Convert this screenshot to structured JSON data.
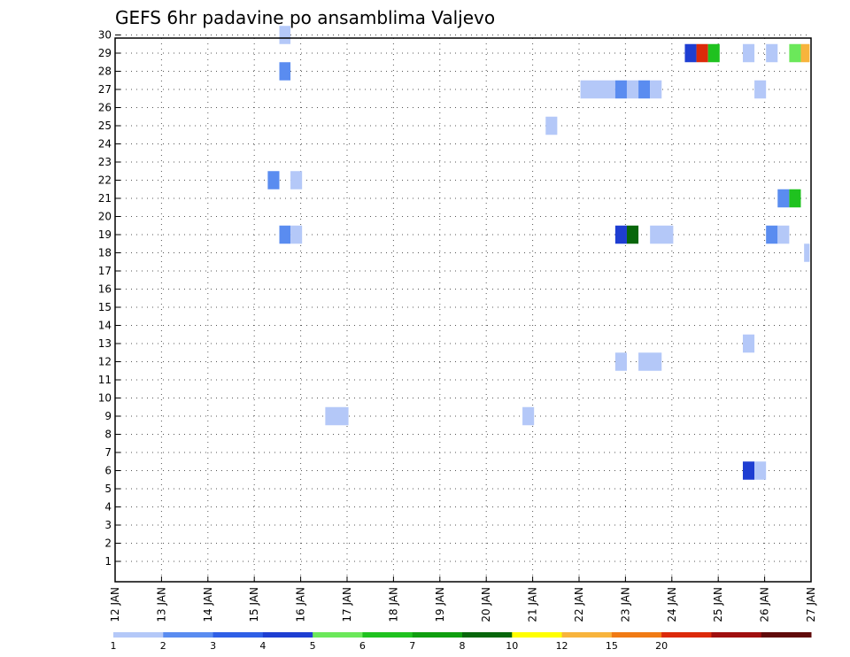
{
  "chart_data": {
    "type": "heatmap",
    "title": "GEFS 6hr padavine po ansamblima Valjevo",
    "xlabel": "",
    "ylabel": "",
    "x_tick_labels": [
      "12 JAN",
      "13 JAN",
      "14 JAN",
      "15 JAN",
      "16 JAN",
      "17 JAN",
      "18 JAN",
      "19 JAN",
      "20 JAN",
      "21 JAN",
      "22 JAN",
      "23 JAN",
      "24 JAN",
      "25 JAN",
      "26 JAN",
      "27 JAN"
    ],
    "y_tick_labels": [
      "1",
      "2",
      "3",
      "4",
      "5",
      "6",
      "7",
      "8",
      "9",
      "10",
      "11",
      "12",
      "13",
      "14",
      "15",
      "16",
      "17",
      "18",
      "19",
      "20",
      "21",
      "22",
      "23",
      "24",
      "25",
      "26",
      "27",
      "28",
      "29",
      "30"
    ],
    "xlim_days": [
      12,
      27
    ],
    "ylim_members": [
      0,
      30
    ],
    "grid": true,
    "colorbar": {
      "labels": [
        "1",
        "2",
        "3",
        "4",
        "5",
        "6",
        "7",
        "8",
        "10",
        "12",
        "15",
        "20"
      ],
      "colors": [
        "#b4c8f8",
        "#5a8cf0",
        "#2f5fe6",
        "#1e3ed2",
        "#6be85a",
        "#1fc21f",
        "#0f9e0f",
        "#07660b",
        "#ffff00",
        "#f8b43c",
        "#f07a14",
        "#dc2a0a",
        "#a00f0f",
        "#600a0a"
      ]
    },
    "cells": [
      {
        "member": 30,
        "x0": 15.54,
        "x1": 15.78,
        "color": "#b4c8f8"
      },
      {
        "member": 28,
        "x0": 15.54,
        "x1": 15.78,
        "color": "#5a8cf0"
      },
      {
        "member": 22,
        "x0": 15.29,
        "x1": 15.54,
        "color": "#5a8cf0"
      },
      {
        "member": 22,
        "x0": 15.78,
        "x1": 16.03,
        "color": "#b4c8f8"
      },
      {
        "member": 19,
        "x0": 15.54,
        "x1": 15.78,
        "color": "#5a8cf0"
      },
      {
        "member": 19,
        "x0": 15.78,
        "x1": 16.03,
        "color": "#b4c8f8"
      },
      {
        "member": 9,
        "x0": 16.53,
        "x1": 17.03,
        "color": "#b4c8f8"
      },
      {
        "member": 9,
        "x0": 20.78,
        "x1": 21.03,
        "color": "#b4c8f8"
      },
      {
        "member": 25,
        "x0": 21.28,
        "x1": 21.53,
        "color": "#b4c8f8"
      },
      {
        "member": 27,
        "x0": 22.03,
        "x1": 22.78,
        "color": "#b4c8f8"
      },
      {
        "member": 27,
        "x0": 22.78,
        "x1": 23.03,
        "color": "#5a8cf0"
      },
      {
        "member": 27,
        "x0": 23.03,
        "x1": 23.28,
        "color": "#b4c8f8"
      },
      {
        "member": 27,
        "x0": 23.28,
        "x1": 23.53,
        "color": "#5a8cf0"
      },
      {
        "member": 27,
        "x0": 23.53,
        "x1": 23.78,
        "color": "#b4c8f8"
      },
      {
        "member": 19,
        "x0": 22.78,
        "x1": 23.03,
        "color": "#1e3ed2"
      },
      {
        "member": 19,
        "x0": 23.03,
        "x1": 23.28,
        "color": "#07660b"
      },
      {
        "member": 19,
        "x0": 23.53,
        "x1": 24.03,
        "color": "#b4c8f8"
      },
      {
        "member": 12,
        "x0": 22.78,
        "x1": 23.03,
        "color": "#b4c8f8"
      },
      {
        "member": 12,
        "x0": 23.28,
        "x1": 23.78,
        "color": "#b4c8f8"
      },
      {
        "member": 29,
        "x0": 24.28,
        "x1": 24.53,
        "color": "#1e3ed2"
      },
      {
        "member": 29,
        "x0": 24.53,
        "x1": 24.78,
        "color": "#dc2a0a"
      },
      {
        "member": 29,
        "x0": 24.78,
        "x1": 25.03,
        "color": "#1fc21f"
      },
      {
        "member": 29,
        "x0": 25.53,
        "x1": 25.78,
        "color": "#b4c8f8"
      },
      {
        "member": 29,
        "x0": 26.03,
        "x1": 26.28,
        "color": "#b4c8f8"
      },
      {
        "member": 29,
        "x0": 26.53,
        "x1": 26.78,
        "color": "#6be85a"
      },
      {
        "member": 29,
        "x0": 26.78,
        "x1": 26.97,
        "color": "#f8b43c"
      },
      {
        "member": 27,
        "x0": 25.78,
        "x1": 26.03,
        "color": "#b4c8f8"
      },
      {
        "member": 21,
        "x0": 26.28,
        "x1": 26.53,
        "color": "#5a8cf0"
      },
      {
        "member": 21,
        "x0": 26.53,
        "x1": 26.78,
        "color": "#1fc21f"
      },
      {
        "member": 19,
        "x0": 26.03,
        "x1": 26.28,
        "color": "#5a8cf0"
      },
      {
        "member": 19,
        "x0": 26.28,
        "x1": 26.53,
        "color": "#b4c8f8"
      },
      {
        "member": 18,
        "x0": 26.85,
        "x1": 26.97,
        "color": "#b4c8f8"
      },
      {
        "member": 13,
        "x0": 25.53,
        "x1": 25.78,
        "color": "#b4c8f8"
      },
      {
        "member": 6,
        "x0": 25.53,
        "x1": 25.78,
        "color": "#1e3ed2"
      },
      {
        "member": 6,
        "x0": 25.78,
        "x1": 26.03,
        "color": "#b4c8f8"
      }
    ]
  }
}
